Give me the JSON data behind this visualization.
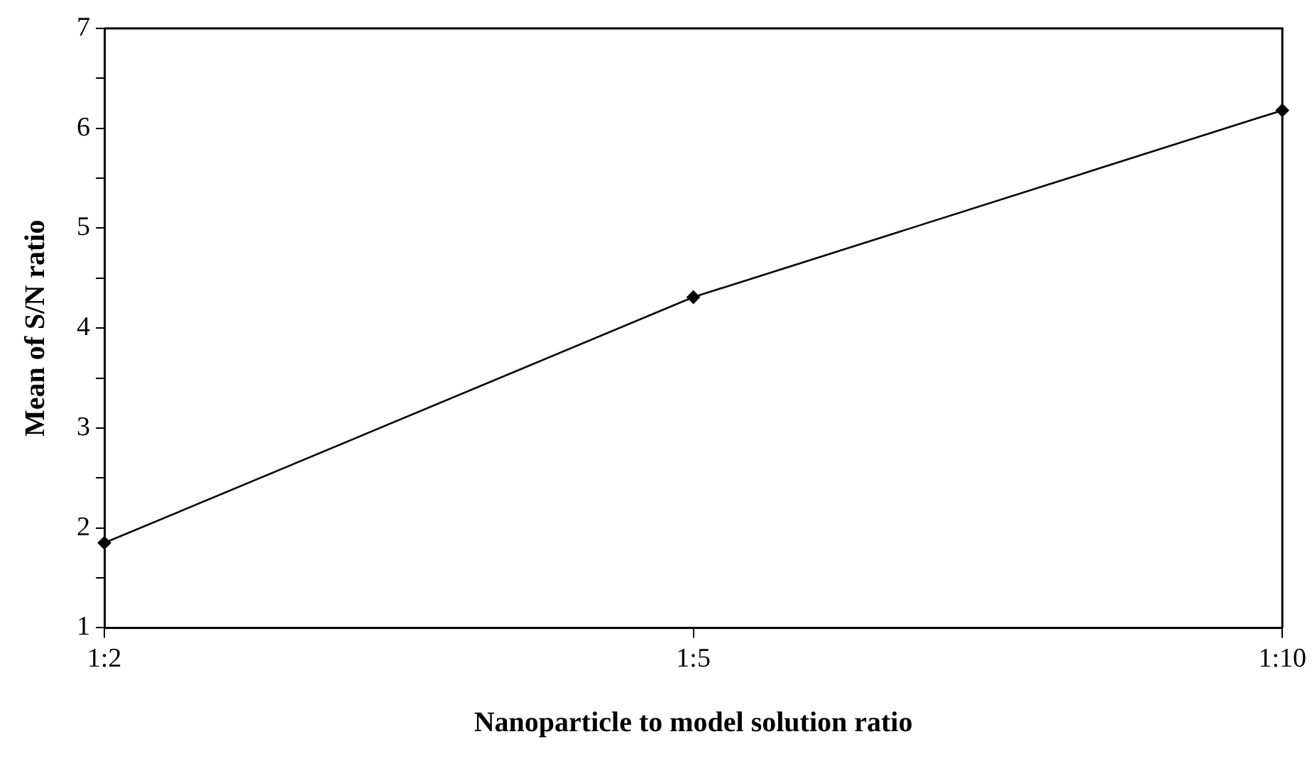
{
  "chart_data": {
    "type": "line",
    "xlabel": "Nanoparticle to model solution ratio",
    "ylabel": "Mean of S/N ratio",
    "categories": [
      "1:2",
      "1:5",
      "1:10"
    ],
    "series": [
      {
        "color": "#000000",
        "values": [
          1.85,
          4.31,
          6.18
        ]
      }
    ],
    "ylim": [
      1,
      7
    ],
    "yticks": [
      1,
      {
        "value": 1.5,
        "label": null
      },
      2,
      {
        "value": 2.5,
        "label": null
      },
      3,
      {
        "value": 3.5,
        "label": null
      },
      4,
      {
        "value": 4.5,
        "label": null
      },
      5,
      {
        "value": 5.5,
        "label": null
      },
      6,
      {
        "value": 6.5,
        "label": null
      },
      7
    ],
    "grid": false,
    "legend": false,
    "marker": "diamond",
    "line_style": "solid"
  }
}
